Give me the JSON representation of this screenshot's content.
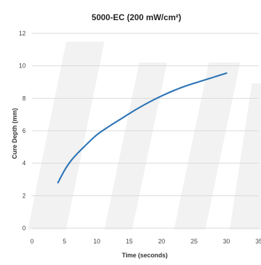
{
  "chart_data": {
    "type": "line",
    "title": "5000-EC (200 mW/cm²)",
    "xlabel": "Time (seconds)",
    "ylabel": "Cure Depth (mm)",
    "xlim": [
      0,
      35
    ],
    "ylim": [
      0,
      12
    ],
    "x_ticks": [
      0,
      5,
      10,
      15,
      20,
      25,
      30,
      35
    ],
    "y_ticks": [
      0,
      2,
      4,
      6,
      8,
      10,
      12
    ],
    "grid": "horizontal",
    "legend": "none",
    "series": [
      {
        "color": "#2e75b6",
        "x": [
          4,
          5,
          6,
          7,
          8,
          10,
          12,
          14,
          16,
          18,
          20,
          22,
          24,
          26,
          28,
          30
        ],
        "y": [
          2.8,
          3.55,
          4.15,
          4.6,
          5.0,
          5.75,
          6.3,
          6.8,
          7.3,
          7.75,
          8.15,
          8.5,
          8.8,
          9.05,
          9.3,
          9.55
        ]
      }
    ]
  }
}
